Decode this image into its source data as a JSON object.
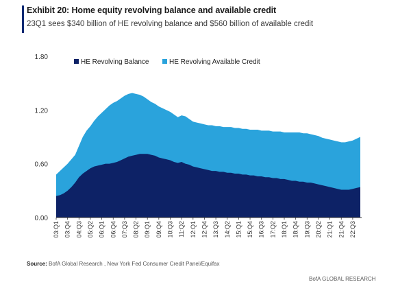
{
  "header": {
    "title": "Exhibit 20: Home equity revolving balance and available credit",
    "subtitle": "23Q1 sees $340 billion of HE revolving balance and $560 billion of available credit"
  },
  "colors": {
    "accent": "#0a2a73",
    "balance": "#0d2266",
    "available_credit": "#2aa3dc"
  },
  "chart_data": {
    "type": "area",
    "stacked": true,
    "ylim": [
      0,
      1.8
    ],
    "yticks": [
      "0.00",
      "0.60",
      "1.20",
      "1.80"
    ],
    "xticks": [
      "03:Q1",
      "03:Q4",
      "04:Q3",
      "05:Q2",
      "06:Q1",
      "06:Q4",
      "07:Q3",
      "08:Q2",
      "09:Q1",
      "09:Q4",
      "10:Q3",
      "11:Q2",
      "12:Q1",
      "12:Q4",
      "13:Q3",
      "14:Q2",
      "15:Q1",
      "15:Q4",
      "16:Q3",
      "17:Q2",
      "18:Q1",
      "18:Q4",
      "19:Q3",
      "20:Q2",
      "21:Q1",
      "21:Q4",
      "22:Q3"
    ],
    "legend_position": "top-left",
    "grid": false,
    "x": [
      "2003Q1",
      "2003Q2",
      "2003Q3",
      "2003Q4",
      "2004Q1",
      "2004Q2",
      "2004Q3",
      "2004Q4",
      "2005Q1",
      "2005Q2",
      "2005Q3",
      "2005Q4",
      "2006Q1",
      "2006Q2",
      "2006Q3",
      "2006Q4",
      "2007Q1",
      "2007Q2",
      "2007Q3",
      "2007Q4",
      "2008Q1",
      "2008Q2",
      "2008Q3",
      "2008Q4",
      "2009Q1",
      "2009Q2",
      "2009Q3",
      "2009Q4",
      "2010Q1",
      "2010Q2",
      "2010Q3",
      "2010Q4",
      "2011Q1",
      "2011Q2",
      "2011Q3",
      "2011Q4",
      "2012Q1",
      "2012Q2",
      "2012Q3",
      "2012Q4",
      "2013Q1",
      "2013Q2",
      "2013Q3",
      "2013Q4",
      "2014Q1",
      "2014Q2",
      "2014Q3",
      "2014Q4",
      "2015Q1",
      "2015Q2",
      "2015Q3",
      "2015Q4",
      "2016Q1",
      "2016Q2",
      "2016Q3",
      "2016Q4",
      "2017Q1",
      "2017Q2",
      "2017Q3",
      "2017Q4",
      "2018Q1",
      "2018Q2",
      "2018Q3",
      "2018Q4",
      "2019Q1",
      "2019Q2",
      "2019Q3",
      "2019Q4",
      "2020Q1",
      "2020Q2",
      "2020Q3",
      "2020Q4",
      "2021Q1",
      "2021Q2",
      "2021Q3",
      "2021Q4",
      "2022Q1",
      "2022Q2",
      "2022Q3",
      "2022Q4",
      "2023Q1"
    ],
    "series": [
      {
        "name": "HE Revolving Balance",
        "values": [
          0.24,
          0.25,
          0.27,
          0.3,
          0.34,
          0.39,
          0.45,
          0.49,
          0.52,
          0.55,
          0.57,
          0.58,
          0.59,
          0.6,
          0.6,
          0.61,
          0.62,
          0.64,
          0.66,
          0.68,
          0.69,
          0.7,
          0.71,
          0.71,
          0.71,
          0.7,
          0.69,
          0.67,
          0.66,
          0.65,
          0.64,
          0.62,
          0.61,
          0.62,
          0.6,
          0.59,
          0.57,
          0.56,
          0.55,
          0.54,
          0.53,
          0.52,
          0.52,
          0.51,
          0.51,
          0.5,
          0.5,
          0.49,
          0.49,
          0.48,
          0.48,
          0.47,
          0.47,
          0.46,
          0.46,
          0.45,
          0.45,
          0.44,
          0.44,
          0.43,
          0.43,
          0.42,
          0.41,
          0.41,
          0.4,
          0.4,
          0.39,
          0.39,
          0.38,
          0.37,
          0.36,
          0.35,
          0.34,
          0.33,
          0.32,
          0.31,
          0.31,
          0.31,
          0.32,
          0.33,
          0.34
        ]
      },
      {
        "name": "HE Revolving Available Credit",
        "total_values": [
          0.48,
          0.52,
          0.56,
          0.6,
          0.65,
          0.7,
          0.8,
          0.9,
          0.97,
          1.02,
          1.08,
          1.13,
          1.17,
          1.21,
          1.25,
          1.28,
          1.3,
          1.33,
          1.36,
          1.38,
          1.39,
          1.38,
          1.37,
          1.35,
          1.32,
          1.29,
          1.27,
          1.24,
          1.22,
          1.2,
          1.18,
          1.15,
          1.12,
          1.14,
          1.13,
          1.1,
          1.07,
          1.06,
          1.05,
          1.04,
          1.03,
          1.03,
          1.02,
          1.02,
          1.01,
          1.01,
          1.01,
          1.0,
          1.0,
          0.99,
          0.99,
          0.98,
          0.98,
          0.98,
          0.97,
          0.97,
          0.97,
          0.96,
          0.96,
          0.96,
          0.95,
          0.95,
          0.95,
          0.95,
          0.95,
          0.94,
          0.94,
          0.93,
          0.92,
          0.91,
          0.89,
          0.88,
          0.87,
          0.86,
          0.85,
          0.84,
          0.84,
          0.85,
          0.86,
          0.88,
          0.9
        ]
      }
    ]
  },
  "footer": {
    "source_label": "Source:",
    "source_text": "BofA Global Research , New York Fed Consumer Credit Panel/Equifax",
    "brand": "BofA GLOBAL RESEARCH"
  }
}
